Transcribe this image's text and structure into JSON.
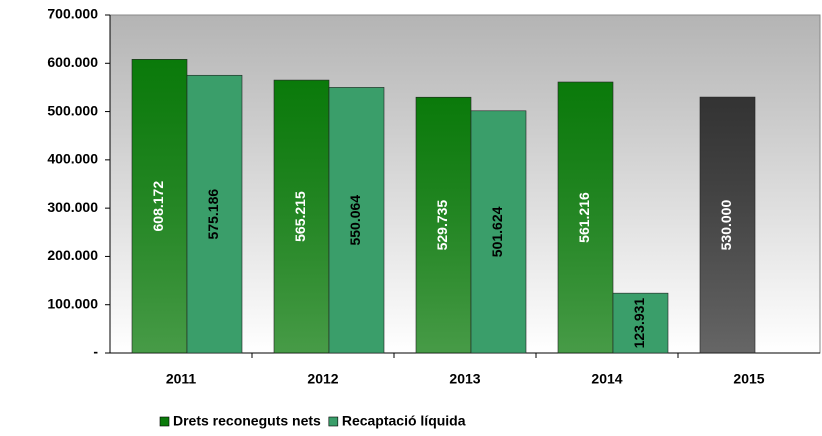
{
  "chart_data": {
    "type": "bar",
    "categories": [
      "2011",
      "2012",
      "2013",
      "2014",
      "2015"
    ],
    "series": [
      {
        "name": "Drets reconeguts nets",
        "color": "#0a7a0a",
        "colors": [
          "#0a7a0a",
          "#0a7a0a",
          "#0a7a0a",
          "#0a7a0a",
          "#333333"
        ],
        "values": [
          608172,
          565215,
          529735,
          561216,
          530000
        ],
        "value_labels": [
          "608.172",
          "565.215",
          "529.735",
          "561.216",
          "530.000"
        ]
      },
      {
        "name": "Recaptació líquida",
        "color": "#3a9e6a",
        "values": [
          575186,
          550064,
          501624,
          123931,
          null
        ],
        "value_labels": [
          "575.186",
          "550.064",
          "501.624",
          "123.931",
          null
        ]
      }
    ],
    "ylim": [
      0,
      700000
    ],
    "yticks": [
      {
        "value": 0,
        "label": "-"
      },
      {
        "value": 100000,
        "label": "100.000"
      },
      {
        "value": 200000,
        "label": "200.000"
      },
      {
        "value": 300000,
        "label": "300.000"
      },
      {
        "value": 400000,
        "label": "400.000"
      },
      {
        "value": 500000,
        "label": "500.000"
      },
      {
        "value": 600000,
        "label": "600.000"
      },
      {
        "value": 700000,
        "label": "700.000"
      }
    ],
    "grid": false
  }
}
